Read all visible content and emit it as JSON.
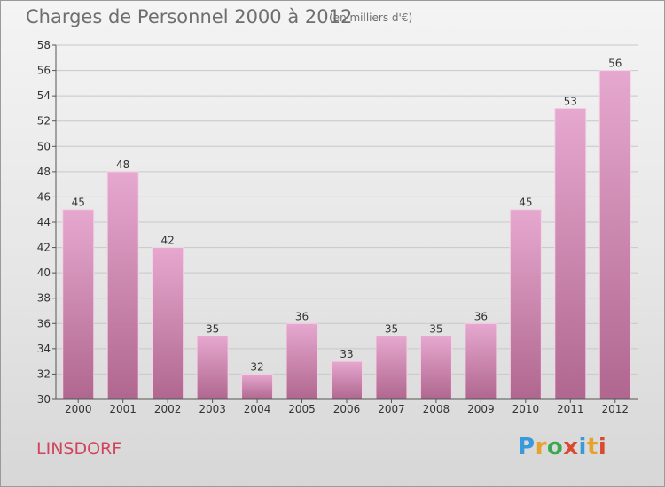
{
  "header": {
    "title": "Charges de Personnel 2000 à 2012",
    "subtitle": "(en milliers d'€)"
  },
  "footer": {
    "place": "LINSDORF",
    "brand": "Proxiti"
  },
  "colors": {
    "bar_top": "#e6a8cf",
    "bar_bottom": "#b0678f",
    "place_text": "#d0455d",
    "brand_letters": [
      "#3a9ad9",
      "#e8a12b",
      "#3aa851",
      "#d94a2e",
      "#3a9ad9",
      "#e8a12b",
      "#d94a2e"
    ]
  },
  "chart_data": {
    "type": "bar",
    "title": "Charges de Personnel 2000 à 2012",
    "subtitle": "(en milliers d'€)",
    "xlabel": "",
    "ylabel": "",
    "categories": [
      "2000",
      "2001",
      "2002",
      "2003",
      "2004",
      "2005",
      "2006",
      "2007",
      "2008",
      "2009",
      "2010",
      "2011",
      "2012"
    ],
    "values": [
      45,
      48,
      42,
      35,
      32,
      36,
      33,
      35,
      35,
      36,
      45,
      53,
      56
    ],
    "ylim": [
      30,
      58
    ],
    "yticks": [
      30,
      32,
      34,
      36,
      38,
      40,
      42,
      44,
      46,
      48,
      50,
      52,
      54,
      56,
      58
    ],
    "grid": true,
    "data_labels": true
  }
}
